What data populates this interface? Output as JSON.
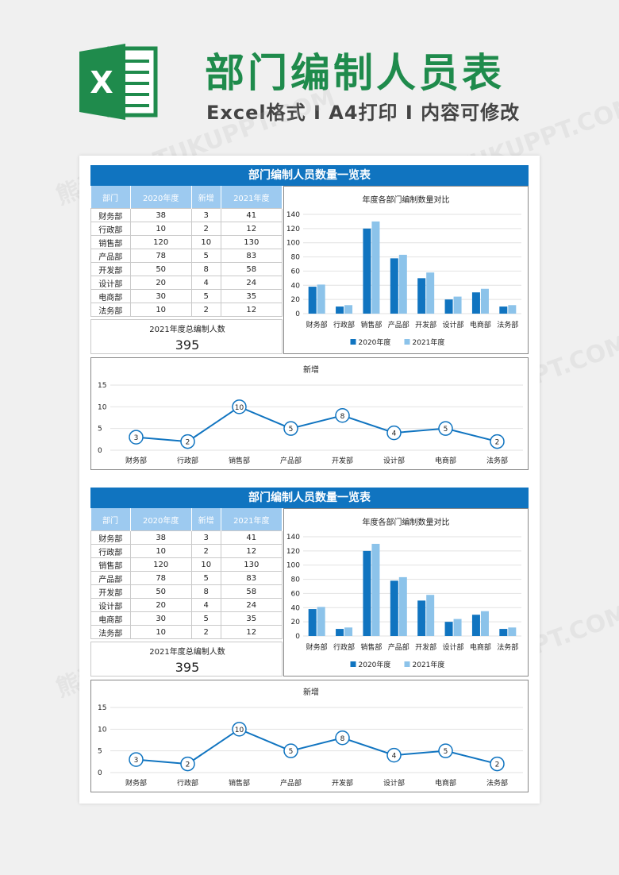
{
  "header": {
    "title": "部门编制人员表",
    "subtitle": "Excel格式 I A4打印 I 内容可修改",
    "logo_letter": "X",
    "watermark": "熊猫办公 TUKUPPT.COM"
  },
  "colors": {
    "brand": "#1f8b4c",
    "accent": "#1074c0",
    "light": "#9dcaf0"
  },
  "sheet": {
    "banner": "部门编制人员数量一览表",
    "table_headers": [
      "部门",
      "2020年度",
      "新增",
      "2021年度"
    ],
    "rows": [
      [
        "财务部",
        "38",
        "3",
        "41"
      ],
      [
        "行政部",
        "10",
        "2",
        "12"
      ],
      [
        "销售部",
        "120",
        "10",
        "130"
      ],
      [
        "产品部",
        "78",
        "5",
        "83"
      ],
      [
        "开发部",
        "50",
        "8",
        "58"
      ],
      [
        "设计部",
        "20",
        "4",
        "24"
      ],
      [
        "电商部",
        "30",
        "5",
        "35"
      ],
      [
        "法务部",
        "10",
        "2",
        "12"
      ]
    ],
    "total_label": "2021年度总编制人数",
    "total_value": "395"
  },
  "chart_data": [
    {
      "type": "bar",
      "title": "年度各部门编制数量对比",
      "categories": [
        "财务部",
        "行政部",
        "销售部",
        "产品部",
        "开发部",
        "设计部",
        "电商部",
        "法务部"
      ],
      "series": [
        {
          "name": "2020年度",
          "values": [
            38,
            10,
            120,
            78,
            50,
            20,
            30,
            10
          ],
          "color": "#1074c0"
        },
        {
          "name": "2021年度",
          "values": [
            41,
            12,
            130,
            83,
            58,
            24,
            35,
            12
          ],
          "color": "#8cc3ea"
        }
      ],
      "ylim": [
        0,
        140
      ],
      "yticks": [
        0,
        20,
        40,
        60,
        80,
        100,
        120,
        140
      ],
      "grid": true,
      "legend": "bottom"
    },
    {
      "type": "line",
      "title": "新增",
      "categories": [
        "财务部",
        "行政部",
        "销售部",
        "产品部",
        "开发部",
        "设计部",
        "电商部",
        "法务部"
      ],
      "values": [
        3,
        2,
        10,
        5,
        8,
        4,
        5,
        2
      ],
      "ylim": [
        0,
        15
      ],
      "yticks": [
        0,
        5,
        10,
        15
      ],
      "grid": true,
      "color": "#1074c0"
    }
  ]
}
